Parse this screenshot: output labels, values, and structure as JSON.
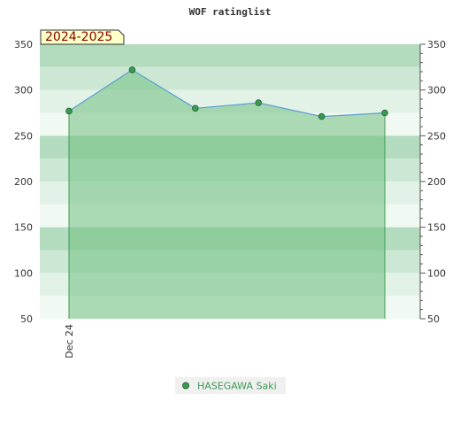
{
  "chart_data": {
    "type": "area",
    "title": "WOF ratinglist",
    "season_label": "2024-2025",
    "x_tick_labels": [
      "Dec 24"
    ],
    "ylim": [
      50,
      350
    ],
    "y_ticks": [
      50,
      100,
      150,
      200,
      250,
      300,
      350
    ],
    "grid": true,
    "legend_position": "bottom",
    "series": [
      {
        "name": "HASEGAWA Saki",
        "values": [
          277,
          322,
          280,
          286,
          271,
          275
        ]
      }
    ]
  },
  "colors": {
    "line": "#5b9bd5",
    "fill": "#6fbf7f",
    "marker": "#3a9a52",
    "band_dark": "#b3dcbf",
    "band_mid": "#cce8d4",
    "band_light": "#e2f2e6",
    "band_pale": "#f1f9f3",
    "legend_text": "#3a9a52",
    "season_bg": "#ffffc8"
  }
}
